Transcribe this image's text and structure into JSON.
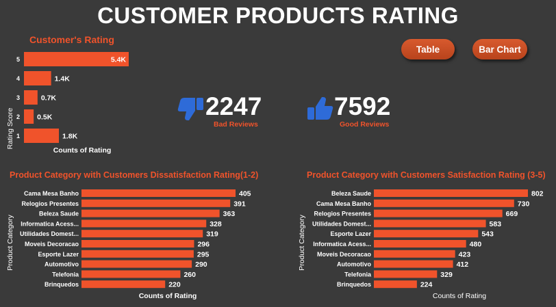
{
  "header": {
    "title": "CUSTOMER PRODUCTS RATING"
  },
  "buttons": {
    "table": "Table",
    "bar_chart": "Bar Chart"
  },
  "kpis": {
    "bad": {
      "value": "2247",
      "label": "Bad Reviews",
      "icon": "thumbs-down-icon"
    },
    "good": {
      "value": "7592",
      "label": "Good Reviews",
      "icon": "thumbs-up-icon"
    }
  },
  "colors": {
    "bar": "#f0532b",
    "title_orange": "#f0532b",
    "icon_blue": "#2e6bd8",
    "background": "#3a3a3a"
  },
  "chart_data": [
    {
      "id": "rating",
      "type": "bar",
      "orientation": "horizontal",
      "title": "Customer's Rating",
      "xlabel": "Counts of Rating",
      "ylabel": "Rating Score",
      "categories": [
        "5",
        "4",
        "3",
        "2",
        "1"
      ],
      "values": [
        5400,
        1400,
        700,
        500,
        1800
      ],
      "labels": [
        "5.4K",
        "1.4K",
        "0.7K",
        "0.5K",
        "1.8K"
      ],
      "xlim": [
        0,
        5400
      ]
    },
    {
      "id": "dissatisfaction",
      "type": "bar",
      "orientation": "horizontal",
      "title": "Product Category with Customers Dissatisfaction Rating(1-2)",
      "xlabel": "Counts of Rating",
      "ylabel": "Product Category",
      "categories": [
        "Cama Mesa Banho",
        "Relogios Presentes",
        "Beleza Saude",
        "Informatica Acess...",
        "Utilidades Domest...",
        "Moveis Decoracao",
        "Esporte Lazer",
        "Automotivo",
        "Telefonia",
        "Brinquedos"
      ],
      "values": [
        405,
        391,
        363,
        328,
        319,
        296,
        295,
        290,
        260,
        220
      ],
      "labels": [
        "405",
        "391",
        "363",
        "328",
        "319",
        "296",
        "295",
        "290",
        "260",
        "220"
      ],
      "xlim": [
        0,
        405
      ]
    },
    {
      "id": "satisfaction",
      "type": "bar",
      "orientation": "horizontal",
      "title": "Product Category with Customers Satisfaction Rating (3-5)",
      "xlabel": "Counts of Rating",
      "ylabel": "Product Category",
      "categories": [
        "Beleza Saude",
        "Cama Mesa Banho",
        "Relogios Presentes",
        "Utilidades Domest...",
        "Esporte Lazer",
        "Informatica Acess...",
        "Moveis Decoracao",
        "Automotivo",
        "Telefonia",
        "Brinquedos"
      ],
      "values": [
        802,
        730,
        669,
        583,
        543,
        480,
        423,
        412,
        329,
        224
      ],
      "labels": [
        "802",
        "730",
        "669",
        "583",
        "543",
        "480",
        "423",
        "412",
        "329",
        "224"
      ],
      "xlim": [
        0,
        802
      ]
    }
  ]
}
